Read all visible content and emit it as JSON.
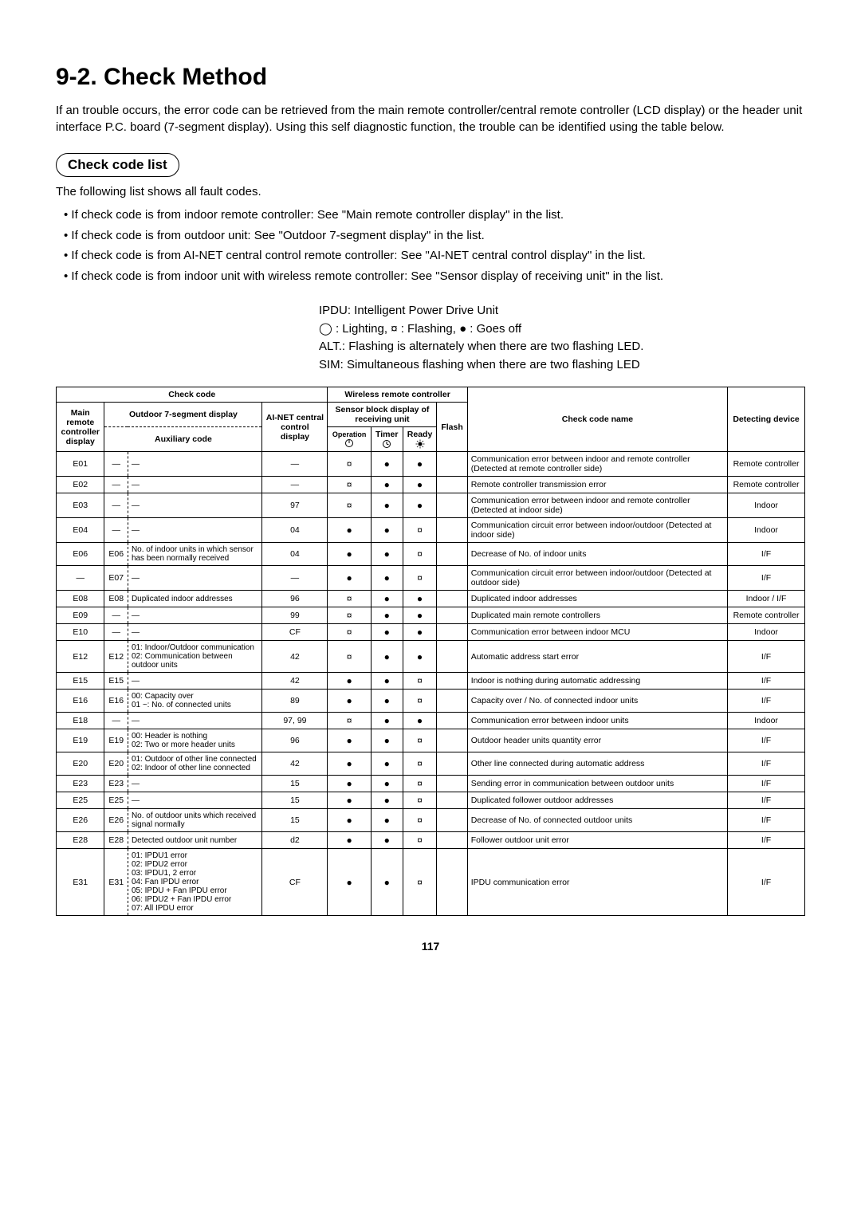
{
  "title": "9-2.  Check Method",
  "intro": "If an trouble occurs, the error code can be retrieved from the main remote controller/central remote controller (LCD display) or the header unit interface P.C. board (7-segment display). Using this self diagnostic function, the trouble can be identified using the table below.",
  "subheading": "Check code list",
  "subtext": "The following list shows all fault codes.",
  "bullets": [
    "If check code is from indoor remote controller: See \"Main remote controller display\" in the list.",
    "If check code is from outdoor unit: See \"Outdoor 7-segment display\" in the list.",
    "If check code is from AI-NET central control remote controller: See \"AI-NET central control display\" in the list.",
    "If check code is from indoor unit with wireless remote controller: See \"Sensor display of receiving unit\" in the list."
  ],
  "legend1": "IPDU: Intelligent Power Drive Unit",
  "legend2_a": " : Lighting,  ",
  "legend2_b": " : Flashing,  ",
  "legend2_c": " : Goes off",
  "legend3": "ALT.: Flashing is alternately when there are two flashing LED.",
  "legend4": "SIM: Simultaneous flashing when there are two flashing LED",
  "headers": {
    "check_code": "Check code",
    "wireless": "Wireless remote controller",
    "main_remote": "Main remote controller display",
    "outdoor7": "Outdoor 7-segment display",
    "ainet": "AI-NET central control display",
    "sensor_block": "Sensor block display of receiving unit",
    "check_name": "Check code name",
    "detecting": "Detecting device",
    "aux": "Auxiliary code",
    "operation": "Operation",
    "timer": "Timer",
    "ready": "Ready",
    "flash": "Flash"
  },
  "symbols": {
    "circle": "◯",
    "sun": "¤",
    "dot": "●",
    "dash": "—"
  },
  "rows": [
    {
      "m": "E01",
      "s1": "—",
      "s2": "—",
      "ai": "—",
      "op": "¤",
      "ti": "●",
      "re": "●",
      "fl": "",
      "name": "Communication error between indoor and remote controller (Detected at remote controller side)",
      "dev": "Remote controller"
    },
    {
      "m": "E02",
      "s1": "—",
      "s2": "—",
      "ai": "—",
      "op": "¤",
      "ti": "●",
      "re": "●",
      "fl": "",
      "name": "Remote controller transmission error",
      "dev": "Remote controller"
    },
    {
      "m": "E03",
      "s1": "—",
      "s2": "—",
      "ai": "97",
      "op": "¤",
      "ti": "●",
      "re": "●",
      "fl": "",
      "name": "Communication error between indoor and remote controller (Detected at indoor side)",
      "dev": "Indoor"
    },
    {
      "m": "E04",
      "s1": "—",
      "s2": "—",
      "ai": "04",
      "op": "●",
      "ti": "●",
      "re": "¤",
      "fl": "",
      "name": "Communication circuit error between indoor/outdoor (Detected at indoor side)",
      "dev": "Indoor"
    },
    {
      "m": "E06",
      "s1": "E06",
      "s2": "No. of indoor units in which sensor has been normally received",
      "ai": "04",
      "op": "●",
      "ti": "●",
      "re": "¤",
      "fl": "",
      "name": "Decrease of No. of indoor units",
      "dev": "I/F"
    },
    {
      "m": "—",
      "s1": "E07",
      "s2": "—",
      "ai": "—",
      "op": "●",
      "ti": "●",
      "re": "¤",
      "fl": "",
      "name": "Communication circuit error between indoor/outdoor (Detected at outdoor side)",
      "dev": "I/F"
    },
    {
      "m": "E08",
      "s1": "E08",
      "s2": "Duplicated indoor addresses",
      "ai": "96",
      "op": "¤",
      "ti": "●",
      "re": "●",
      "fl": "",
      "name": "Duplicated indoor addresses",
      "dev": "Indoor / I/F"
    },
    {
      "m": "E09",
      "s1": "—",
      "s2": "—",
      "ai": "99",
      "op": "¤",
      "ti": "●",
      "re": "●",
      "fl": "",
      "name": "Duplicated main remote controllers",
      "dev": "Remote controller"
    },
    {
      "m": "E10",
      "s1": "—",
      "s2": "—",
      "ai": "CF",
      "op": "¤",
      "ti": "●",
      "re": "●",
      "fl": "",
      "name": "Communication error between indoor MCU",
      "dev": "Indoor"
    },
    {
      "m": "E12",
      "s1": "E12",
      "s2": "01: Indoor/Outdoor communication\n02: Communication between outdoor units",
      "ai": "42",
      "op": "¤",
      "ti": "●",
      "re": "●",
      "fl": "",
      "name": "Automatic address start error",
      "dev": "I/F"
    },
    {
      "m": "E15",
      "s1": "E15",
      "s2": "—",
      "ai": "42",
      "op": "●",
      "ti": "●",
      "re": "¤",
      "fl": "",
      "name": "Indoor is nothing during automatic addressing",
      "dev": "I/F"
    },
    {
      "m": "E16",
      "s1": "E16",
      "s2": "00: Capacity over\n01 ~: No. of connected units",
      "ai": "89",
      "op": "●",
      "ti": "●",
      "re": "¤",
      "fl": "",
      "name": "Capacity over / No. of connected indoor units",
      "dev": "I/F"
    },
    {
      "m": "E18",
      "s1": "—",
      "s2": "—",
      "ai": "97, 99",
      "op": "¤",
      "ti": "●",
      "re": "●",
      "fl": "",
      "name": "Communication error between indoor units",
      "dev": "Indoor"
    },
    {
      "m": "E19",
      "s1": "E19",
      "s2": "00: Header is nothing\n02: Two or more header units",
      "ai": "96",
      "op": "●",
      "ti": "●",
      "re": "¤",
      "fl": "",
      "name": "Outdoor header units quantity error",
      "dev": "I/F"
    },
    {
      "m": "E20",
      "s1": "E20",
      "s2": "01: Outdoor of other line connected\n02: Indoor of other line connected",
      "ai": "42",
      "op": "●",
      "ti": "●",
      "re": "¤",
      "fl": "",
      "name": "Other line connected during automatic address",
      "dev": "I/F"
    },
    {
      "m": "E23",
      "s1": "E23",
      "s2": "—",
      "ai": "15",
      "op": "●",
      "ti": "●",
      "re": "¤",
      "fl": "",
      "name": "Sending error in communication between outdoor units",
      "dev": "I/F"
    },
    {
      "m": "E25",
      "s1": "E25",
      "s2": "—",
      "ai": "15",
      "op": "●",
      "ti": "●",
      "re": "¤",
      "fl": "",
      "name": "Duplicated follower outdoor addresses",
      "dev": "I/F"
    },
    {
      "m": "E26",
      "s1": "E26",
      "s2": "No. of outdoor units which received signal normally",
      "ai": "15",
      "op": "●",
      "ti": "●",
      "re": "¤",
      "fl": "",
      "name": "Decrease of No. of connected outdoor units",
      "dev": "I/F"
    },
    {
      "m": "E28",
      "s1": "E28",
      "s2": "Detected outdoor unit number",
      "ai": "d2",
      "op": "●",
      "ti": "●",
      "re": "¤",
      "fl": "",
      "name": "Follower outdoor unit error",
      "dev": "I/F"
    },
    {
      "m": "E31",
      "s1": "E31",
      "s2": "01: IPDU1 error\n02: IPDU2 error\n03: IPDU1, 2 error\n04: Fan IPDU error\n05: IPDU + Fan IPDU error\n06: IPDU2 + Fan IPDU error\n07: All IPDU error",
      "ai": "CF",
      "op": "●",
      "ti": "●",
      "re": "¤",
      "fl": "",
      "name": "IPDU communication error",
      "dev": "I/F"
    }
  ],
  "pagenum": "117"
}
